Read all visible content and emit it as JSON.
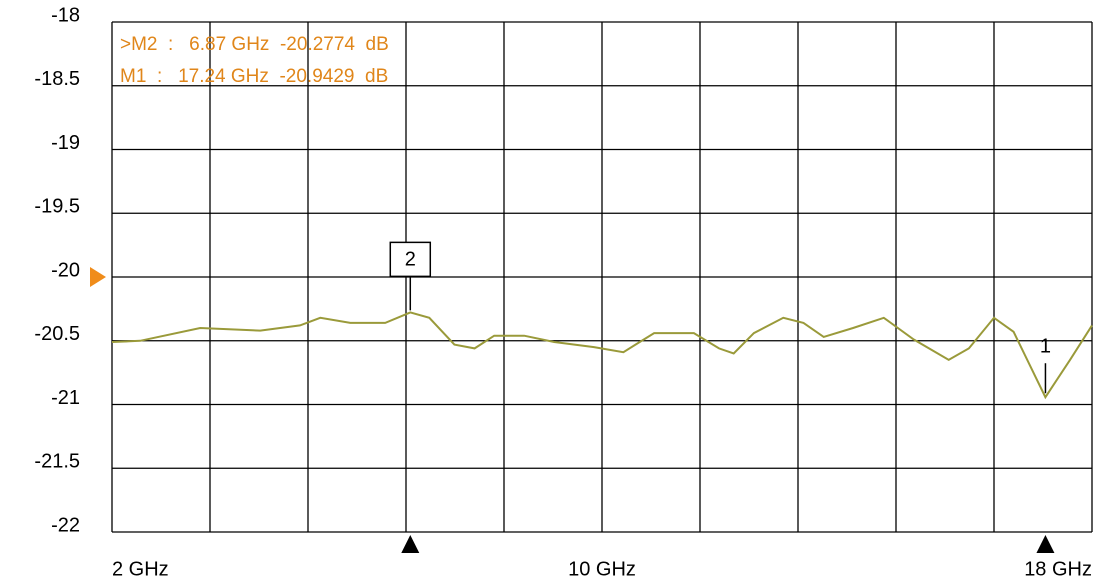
{
  "chart_data": {
    "type": "line",
    "x": [
      2,
      2.46,
      3.44,
      4.42,
      5.07,
      5.4,
      5.89,
      6.46,
      6.87,
      7.18,
      7.59,
      7.92,
      8.24,
      8.73,
      9.22,
      9.87,
      10.35,
      10.85,
      11.5,
      11.91,
      12.15,
      12.48,
      12.96,
      13.29,
      13.62,
      14.1,
      14.6,
      15.09,
      15.66,
      15.99,
      16.4,
      16.72,
      17.24,
      17.64,
      18
    ],
    "series": [
      {
        "color": "#9a9a3a",
        "values": [
          -20.51,
          -20.5,
          -20.4,
          -20.42,
          -20.38,
          -20.32,
          -20.36,
          -20.36,
          -20.2774,
          -20.32,
          -20.53,
          -20.56,
          -20.46,
          -20.46,
          -20.51,
          -20.55,
          -20.59,
          -20.44,
          -20.44,
          -20.56,
          -20.6,
          -20.44,
          -20.32,
          -20.36,
          -20.47,
          -20.4,
          -20.32,
          -20.49,
          -20.65,
          -20.56,
          -20.32,
          -20.43,
          -20.9429,
          -20.65,
          -20.38
        ]
      }
    ],
    "xlim": [
      2,
      18
    ],
    "xticks": [
      {
        "value": 2,
        "label": "2 GHz"
      },
      {
        "value": 10,
        "label": "10 GHz"
      },
      {
        "value": 18,
        "label": "18 GHz"
      }
    ],
    "ylim": [
      -22,
      -18
    ],
    "yticks": [
      -18,
      -18.5,
      -19,
      -19.5,
      -20,
      -20.5,
      -21,
      -21.5,
      -22
    ],
    "grid": true,
    "grid_divisions_x": 10,
    "reference_level": -20,
    "markers": [
      {
        "label": "1",
        "x": 17.24,
        "y": -20.9429,
        "readout": "M1  :   17.24 GHz  -20.9429  dB"
      },
      {
        "label": "2",
        "x": 6.87,
        "y": -20.2774,
        "readout": ">M2  :   6.87 GHz  -20.2774  dB"
      }
    ]
  }
}
